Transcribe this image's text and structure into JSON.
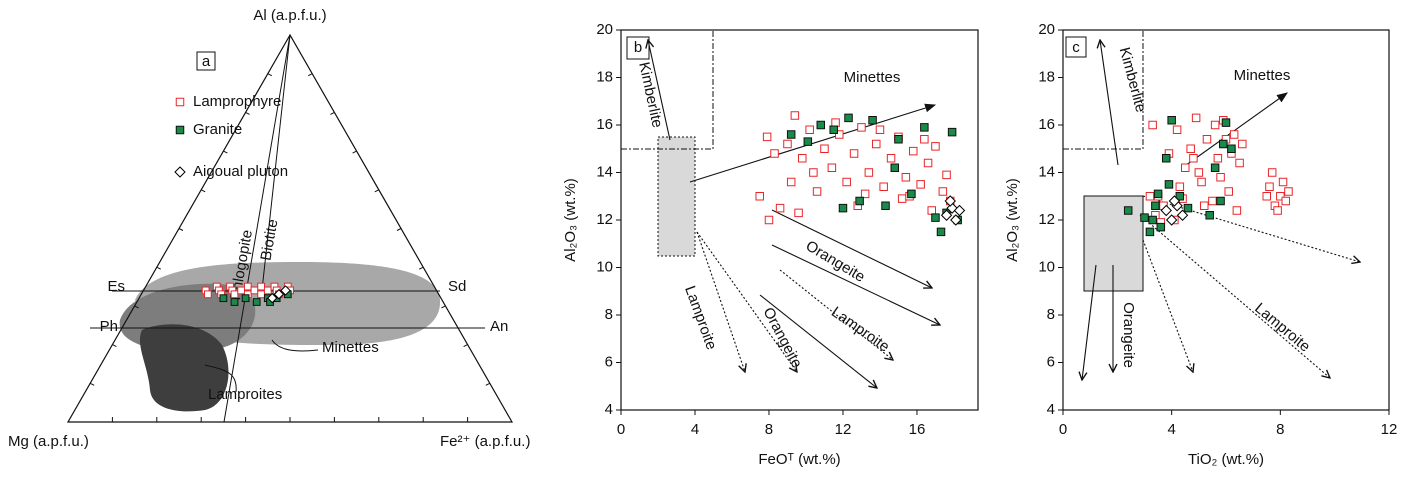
{
  "chart_data": [
    {
      "type": "ternary",
      "panel_label": "a",
      "apex_top": "Al (a.p.f.u.)",
      "apex_left": "Mg (a.p.f.u.)",
      "apex_right": "Fe²⁺ (a.p.f.u.)",
      "ticks": [
        0.1,
        0.2,
        0.3,
        0.4,
        0.5,
        0.6,
        0.7,
        0.8,
        0.9
      ],
      "annotations": [
        "Es",
        "Sd",
        "Ph",
        "An",
        "Phlogopite",
        "Biotite",
        "Minettes",
        "Lamproites"
      ],
      "series": [
        {
          "name": "Lamprophyre",
          "color": "#e8262a",
          "marker": "open-square",
          "Al": [
            0.34,
            0.33,
            0.35,
            0.34,
            0.33,
            0.35,
            0.34,
            0.33,
            0.34,
            0.35,
            0.33,
            0.34,
            0.35,
            0.33,
            0.34,
            0.35,
            0.34,
            0.33,
            0.35,
            0.34
          ],
          "Mg": [
            0.52,
            0.52,
            0.49,
            0.49,
            0.49,
            0.46,
            0.46,
            0.46,
            0.44,
            0.42,
            0.43,
            0.41,
            0.39,
            0.4,
            0.38,
            0.36,
            0.36,
            0.36,
            0.33,
            0.33
          ],
          "Fe": [
            0.14,
            0.15,
            0.16,
            0.17,
            0.18,
            0.19,
            0.2,
            0.21,
            0.22,
            0.23,
            0.24,
            0.25,
            0.26,
            0.27,
            0.28,
            0.29,
            0.3,
            0.31,
            0.32,
            0.33
          ]
        },
        {
          "name": "Granite",
          "color": "#1a8a4a",
          "marker": "filled-square",
          "Al": [
            0.32,
            0.31,
            0.32,
            0.31,
            0.32,
            0.31,
            0.32,
            0.33
          ],
          "Mg": [
            0.49,
            0.47,
            0.44,
            0.42,
            0.39,
            0.39,
            0.37,
            0.34
          ],
          "Fe": [
            0.19,
            0.22,
            0.24,
            0.27,
            0.29,
            0.3,
            0.31,
            0.33
          ]
        },
        {
          "name": "Aigoual pluton",
          "color": "#000000",
          "marker": "open-diamond",
          "Al": [
            0.32,
            0.33,
            0.34,
            0.33
          ],
          "Mg": [
            0.38,
            0.36,
            0.34,
            0.36
          ],
          "Fe": [
            0.3,
            0.31,
            0.32,
            0.31
          ]
        }
      ]
    },
    {
      "type": "scatter",
      "panel_label": "b",
      "xlabel": "FeOᵀ (wt.%)",
      "ylabel": "Al₂O₃ (wt.%)",
      "xlim": [
        0,
        19.3
      ],
      "ylim": [
        4,
        20
      ],
      "xticks": [
        0,
        4,
        8,
        12,
        16
      ],
      "yticks": [
        4,
        6,
        8,
        10,
        12,
        14,
        16,
        18,
        20
      ],
      "annotations": [
        "Kimberlite",
        "Minettes",
        "Orangeite",
        "Lamproite",
        "Orangeite",
        "Lamproite"
      ],
      "series": [
        {
          "color": "#e8262a",
          "marker": "open-square",
          "x": [
            7.5,
            7.9,
            8.3,
            8.6,
            9.0,
            9.4,
            9.8,
            10.2,
            10.6,
            11.0,
            11.4,
            11.8,
            12.2,
            12.6,
            13.0,
            13.4,
            13.8,
            14.2,
            14.6,
            15.0,
            15.4,
            15.8,
            16.2,
            16.6,
            17.0,
            17.4,
            17.8,
            8.0,
            9.2,
            10.4,
            11.6,
            12.8,
            14.0,
            15.2,
            16.4,
            17.6,
            9.6,
            13.2,
            15.6,
            16.8
          ],
          "y": [
            13.0,
            15.5,
            14.8,
            12.5,
            15.2,
            16.4,
            14.6,
            15.8,
            13.2,
            15.0,
            14.2,
            15.6,
            13.6,
            14.8,
            15.9,
            14.0,
            15.2,
            13.4,
            14.6,
            15.5,
            13.8,
            14.9,
            13.5,
            14.4,
            15.1,
            13.2,
            12.8,
            12.0,
            13.6,
            14.0,
            16.1,
            12.6,
            15.8,
            12.9,
            15.4,
            13.9,
            12.3,
            13.1,
            13.0,
            12.4
          ]
        },
        {
          "color": "#1a8a4a",
          "marker": "filled-square",
          "x": [
            9.2,
            10.1,
            10.8,
            11.5,
            12.3,
            12.9,
            13.6,
            14.3,
            15.0,
            15.7,
            16.4,
            17.0,
            17.3,
            17.6,
            17.9,
            18.2,
            12.0,
            14.8
          ],
          "y": [
            15.6,
            15.3,
            16.0,
            15.8,
            16.3,
            12.8,
            16.2,
            12.6,
            15.4,
            13.1,
            15.9,
            12.1,
            11.5,
            12.3,
            15.7,
            12.0,
            12.5,
            14.2
          ]
        },
        {
          "color": "#000000",
          "marker": "open-diamond",
          "x": [
            17.6,
            17.9,
            18.1,
            17.8,
            18.3
          ],
          "y": [
            12.2,
            12.5,
            12.0,
            12.8,
            12.4
          ]
        }
      ]
    },
    {
      "type": "scatter",
      "panel_label": "c",
      "xlabel": "TiO₂ (wt.%)",
      "ylabel": "Al₂O₃ (wt.%)",
      "xlim": [
        0,
        12
      ],
      "ylim": [
        4,
        20
      ],
      "xticks": [
        0,
        4,
        8,
        12
      ],
      "yticks": [
        4,
        6,
        8,
        10,
        12,
        14,
        16,
        18,
        20
      ],
      "annotations": [
        "Kimberlite",
        "Minettes",
        "Orangeite",
        "Lamproite"
      ],
      "series": [
        {
          "color": "#e8262a",
          "marker": "open-square",
          "x": [
            3.3,
            3.5,
            3.7,
            3.9,
            4.1,
            4.3,
            4.5,
            4.7,
            4.9,
            5.1,
            5.3,
            5.5,
            5.7,
            5.9,
            6.1,
            6.3,
            6.5,
            7.6,
            7.8,
            8.0,
            8.2,
            7.7,
            7.9,
            8.1,
            3.4,
            4.2,
            5.0,
            5.8,
            6.6,
            3.6,
            4.4,
            5.2,
            6.0,
            6.4,
            7.5,
            8.3,
            4.8,
            5.6,
            6.2,
            3.2
          ],
          "y": [
            16.0,
            13.0,
            12.6,
            14.8,
            12.0,
            13.4,
            14.2,
            15.0,
            16.3,
            13.6,
            15.4,
            12.8,
            14.6,
            16.2,
            13.2,
            15.6,
            14.4,
            13.4,
            12.6,
            13.0,
            12.8,
            14.0,
            12.4,
            13.6,
            12.2,
            15.8,
            14.0,
            13.8,
            15.2,
            11.9,
            12.9,
            12.6,
            15.4,
            12.4,
            13.0,
            13.2,
            14.6,
            16.0,
            14.8,
            13.0
          ]
        },
        {
          "color": "#1a8a4a",
          "marker": "filled-square",
          "x": [
            2.4,
            3.0,
            3.2,
            3.3,
            3.5,
            3.6,
            3.8,
            4.0,
            4.3,
            4.6,
            5.4,
            5.6,
            5.9,
            6.0,
            6.2,
            5.8,
            3.4,
            3.9
          ],
          "y": [
            12.4,
            12.1,
            11.5,
            12.0,
            13.1,
            11.7,
            14.6,
            16.2,
            13.0,
            12.5,
            12.2,
            14.2,
            15.2,
            16.1,
            15.0,
            12.8,
            12.6,
            13.5
          ]
        },
        {
          "color": "#000000",
          "marker": "open-diamond",
          "x": [
            3.8,
            4.0,
            4.2,
            4.4,
            4.1
          ],
          "y": [
            12.4,
            12.0,
            12.6,
            12.2,
            12.8
          ]
        }
      ]
    }
  ]
}
